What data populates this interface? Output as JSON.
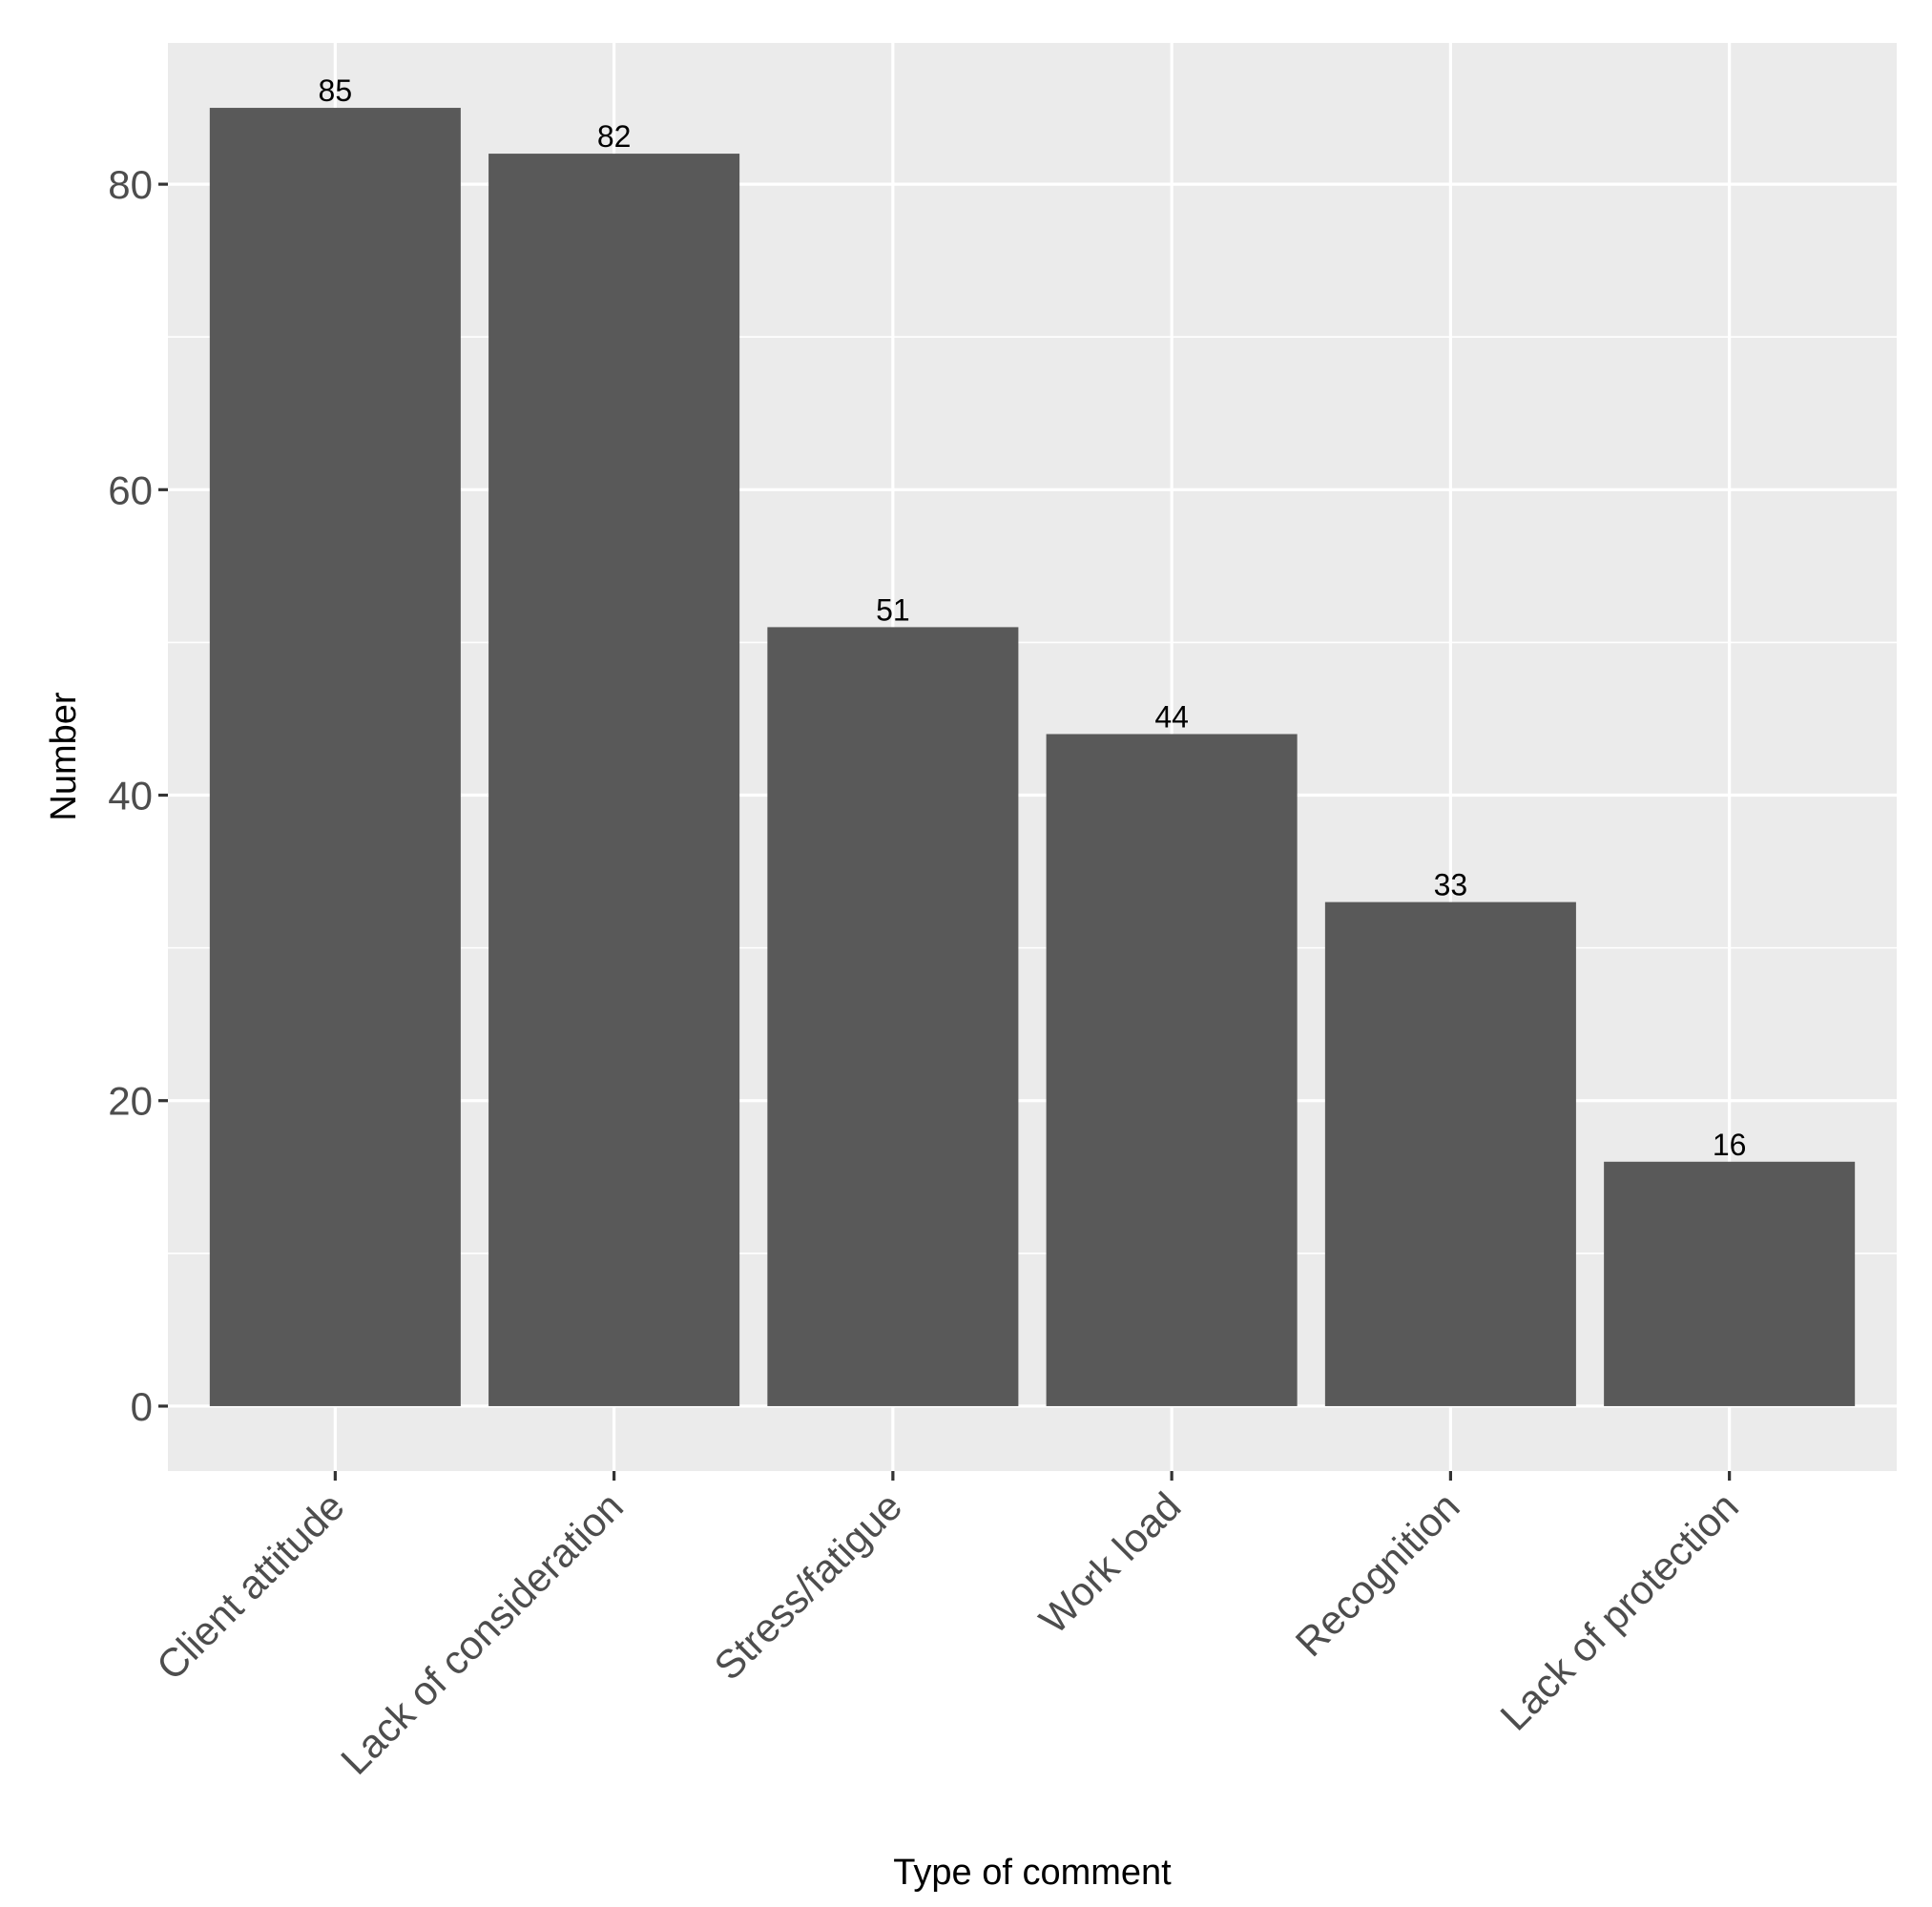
{
  "chart_data": {
    "type": "bar",
    "xlabel": "Type of comment",
    "ylabel": "Number",
    "categories": [
      "Client attitude",
      "Lack of consideration",
      "Stress/fatigue",
      "Work load",
      "Recognition",
      "Lack of protection"
    ],
    "values": [
      85,
      82,
      51,
      44,
      33,
      16
    ],
    "data_labels": [
      "85",
      "82",
      "51",
      "44",
      "33",
      "16"
    ],
    "y_ticks": [
      0,
      20,
      40,
      60,
      80
    ],
    "y_tick_labels": [
      "0",
      "20",
      "40",
      "60",
      "80"
    ],
    "ylim": [
      -4.25,
      89.25
    ],
    "grid": true,
    "bar_color": "#595959",
    "panel_color": "#ebebeb"
  }
}
